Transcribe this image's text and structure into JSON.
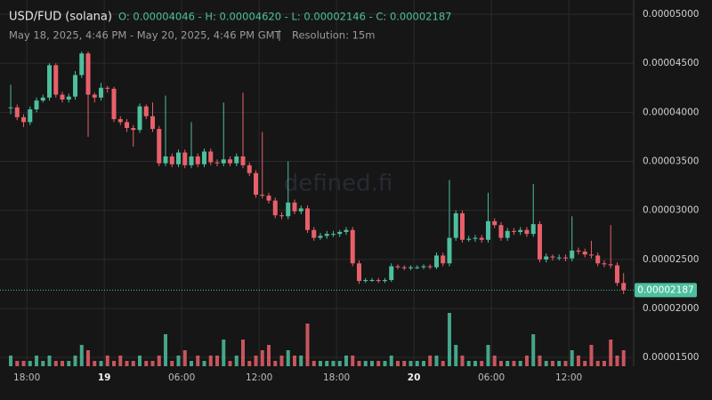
{
  "chart_data": {
    "type": "candlestick",
    "title": "USD/FUD (solana)",
    "ohlc": "O: 0.00004046 - H: 0.00004620 - L: 0.00002146 - C: 0.00002187",
    "date_range": "May 18, 2025, 4:46 PM - May 20, 2025, 4:46 PM GMT",
    "resolution": "Resolution: 15m",
    "watermark": "defined.fi",
    "last_price_label": "0.00002187",
    "up_color": "#4dbf9e",
    "down_color": "#e8606a",
    "grid": true,
    "xlim": [
      15.92,
      65.03
    ],
    "xticks": [
      {
        "value": 18,
        "label": "18:00"
      },
      {
        "value": 24,
        "label": "19"
      },
      {
        "value": 30,
        "label": "06:00"
      },
      {
        "value": 36,
        "label": "12:00"
      },
      {
        "value": 42,
        "label": "18:00"
      },
      {
        "value": 48,
        "label": "20"
      },
      {
        "value": 54,
        "label": "06:00"
      },
      {
        "value": 60,
        "label": "12:00"
      }
    ],
    "ylim": [
      1.411e-05,
      5.145e-05
    ],
    "yticks": [
      {
        "value": 1.5e-05,
        "label": "0.00001500"
      },
      {
        "value": 2e-05,
        "label": "0.00002000"
      },
      {
        "value": 2.5e-05,
        "label": "0.00002500"
      },
      {
        "value": 3e-05,
        "label": "0.00003000"
      },
      {
        "value": 3.5e-05,
        "label": "0.00003500"
      },
      {
        "value": 4e-05,
        "label": "0.00004000"
      },
      {
        "value": 4.5e-05,
        "label": "0.00004500"
      },
      {
        "value": 5e-05,
        "label": "0.00005000"
      }
    ],
    "x": [
      16.75,
      17.25,
      17.75,
      18.25,
      18.75,
      19.25,
      19.75,
      20.25,
      20.75,
      21.25,
      21.75,
      22.25,
      22.75,
      23.25,
      23.75,
      24.25,
      24.75,
      25.25,
      25.75,
      26.25,
      26.75,
      27.25,
      27.75,
      28.25,
      28.75,
      29.25,
      29.75,
      30.25,
      30.75,
      31.25,
      31.75,
      32.25,
      32.75,
      33.25,
      33.75,
      34.25,
      34.75,
      35.25,
      35.75,
      36.25,
      36.75,
      37.25,
      37.75,
      38.25,
      38.75,
      39.25,
      39.75,
      40.25,
      40.75,
      41.25,
      41.75,
      42.25,
      42.75,
      43.25,
      43.75,
      44.25,
      44.75,
      45.25,
      45.75,
      46.25,
      46.75,
      47.25,
      47.75,
      48.25,
      48.75,
      49.25,
      49.75,
      50.25,
      50.75,
      51.25,
      51.75,
      52.25,
      52.75,
      53.25,
      53.75,
      54.25,
      54.75,
      55.25,
      55.75,
      56.25,
      56.75,
      57.25,
      57.75,
      58.25,
      58.75,
      59.25,
      59.75,
      60.25,
      60.75,
      61.25,
      61.75,
      62.25,
      62.75,
      63.25,
      63.75,
      64.25
    ],
    "open": [
      4.046e-05,
      4.05e-05,
      3.95e-05,
      3.9e-05,
      4.03e-05,
      4.12e-05,
      4.15e-05,
      4.48e-05,
      4.18e-05,
      4.13e-05,
      4.16e-05,
      4.38e-05,
      4.6e-05,
      4.18e-05,
      4.15e-05,
      4.25e-05,
      4.24e-05,
      3.93e-05,
      3.9e-05,
      3.84e-05,
      3.82e-05,
      4.06e-05,
      3.96e-05,
      3.83e-05,
      3.48e-05,
      3.55e-05,
      3.47e-05,
      3.59e-05,
      3.46e-05,
      3.55e-05,
      3.47e-05,
      3.6e-05,
      3.49e-05,
      3.48e-05,
      3.52e-05,
      3.48e-05,
      3.55e-05,
      3.46e-05,
      3.38e-05,
      3.16e-05,
      3.15e-05,
      3.1e-05,
      2.95e-05,
      2.94e-05,
      3.08e-05,
      2.99e-05,
      3.02e-05,
      2.8e-05,
      2.72e-05,
      2.74e-05,
      2.76e-05,
      2.76e-05,
      2.78e-05,
      2.8e-05,
      2.46e-05,
      2.28e-05,
      2.29e-05,
      2.29e-05,
      2.28e-05,
      2.29e-05,
      2.43e-05,
      2.42e-05,
      2.41e-05,
      2.42e-05,
      2.42e-05,
      2.43e-05,
      2.42e-05,
      2.54e-05,
      2.46e-05,
      2.72e-05,
      2.97e-05,
      2.7e-05,
      2.71e-05,
      2.72e-05,
      2.7e-05,
      2.89e-05,
      2.85e-05,
      2.72e-05,
      2.79e-05,
      2.78e-05,
      2.8e-05,
      2.76e-05,
      2.86e-05,
      2.5e-05,
      2.53e-05,
      2.52e-05,
      2.52e-05,
      2.51e-05,
      2.59e-05,
      2.58e-05,
      2.55e-05,
      2.54e-05,
      2.46e-05,
      2.45e-05,
      2.44e-05,
      2.26e-05
    ],
    "high": [
      4.28e-05,
      4.08e-05,
      3.98e-05,
      4.06e-05,
      4.15e-05,
      4.18e-05,
      4.5e-05,
      4.5e-05,
      4.21e-05,
      4.19e-05,
      4.42e-05,
      4.62e-05,
      4.62e-05,
      4.2e-05,
      4.3e-05,
      4.27e-05,
      4.26e-05,
      3.96e-05,
      3.93e-05,
      3.87e-05,
      4.09e-05,
      4.08e-05,
      4.1e-05,
      3.86e-05,
      4.17e-05,
      3.58e-05,
      3.62e-05,
      3.62e-05,
      3.9e-05,
      3.58e-05,
      3.63e-05,
      3.63e-05,
      3.52e-05,
      4.1e-05,
      3.55e-05,
      3.58e-05,
      4.2e-05,
      3.49e-05,
      3.41e-05,
      3.8e-05,
      3.18e-05,
      3.13e-05,
      2.98e-05,
      3.5e-05,
      3.11e-05,
      3.05e-05,
      3.05e-05,
      2.83e-05,
      2.77e-05,
      2.79e-05,
      2.79e-05,
      2.8e-05,
      2.83e-05,
      2.83e-05,
      2.49e-05,
      2.31e-05,
      2.31e-05,
      2.31e-05,
      2.31e-05,
      2.46e-05,
      2.45e-05,
      2.44e-05,
      2.44e-05,
      2.44e-05,
      2.45e-05,
      2.45e-05,
      2.57e-05,
      2.57e-05,
      3.31e-05,
      3e-05,
      3e-05,
      2.74e-05,
      2.75e-05,
      2.75e-05,
      3.18e-05,
      2.92e-05,
      2.88e-05,
      2.82e-05,
      2.82e-05,
      2.83e-05,
      2.83e-05,
      3.27e-05,
      2.89e-05,
      2.56e-05,
      2.55e-05,
      2.55e-05,
      2.55e-05,
      2.94e-05,
      2.62e-05,
      2.61e-05,
      2.69e-05,
      2.57e-05,
      2.49e-05,
      2.85e-05,
      2.47e-05,
      2.36e-05
    ],
    "low": [
      3.98e-05,
      3.92e-05,
      3.85e-05,
      3.87e-05,
      4e-05,
      4.1e-05,
      4.12e-05,
      4.15e-05,
      4.1e-05,
      4.1e-05,
      4.13e-05,
      4.35e-05,
      3.75e-05,
      4.1e-05,
      4.12e-05,
      4.2e-05,
      3.9e-05,
      3.87e-05,
      3.8e-05,
      3.65e-05,
      3.79e-05,
      3.93e-05,
      3.8e-05,
      3.45e-05,
      3.45e-05,
      3.44e-05,
      3.44e-05,
      3.43e-05,
      3.43e-05,
      3.44e-05,
      3.44e-05,
      3.46e-05,
      3.45e-05,
      3.45e-05,
      3.45e-05,
      3.45e-05,
      3.43e-05,
      3.35e-05,
      3.13e-05,
      3.12e-05,
      3.07e-05,
      2.92e-05,
      2.91e-05,
      2.91e-05,
      2.96e-05,
      2.96e-05,
      2.77e-05,
      2.69e-05,
      2.7e-05,
      2.71e-05,
      2.73e-05,
      2.73e-05,
      2.75e-05,
      2.43e-05,
      2.25e-05,
      2.26e-05,
      2.27e-05,
      2.26e-05,
      2.26e-05,
      2.27e-05,
      2.4e-05,
      2.39e-05,
      2.39e-05,
      2.4e-05,
      2.4e-05,
      2.4e-05,
      2.4e-05,
      2.43e-05,
      2.43e-05,
      2.69e-05,
      2.67e-05,
      2.68e-05,
      2.68e-05,
      2.67e-05,
      2.67e-05,
      2.82e-05,
      2.69e-05,
      2.69e-05,
      2.75e-05,
      2.75e-05,
      2.73e-05,
      2.73e-05,
      2.47e-05,
      2.47e-05,
      2.49e-05,
      2.49e-05,
      2.48e-05,
      2.48e-05,
      2.55e-05,
      2.52e-05,
      2.51e-05,
      2.43e-05,
      2.42e-05,
      2.41e-05,
      2.23e-05,
      2.146e-05
    ],
    "close": [
      4.05e-05,
      3.95e-05,
      3.9e-05,
      4.03e-05,
      4.12e-05,
      4.15e-05,
      4.48e-05,
      4.18e-05,
      4.13e-05,
      4.16e-05,
      4.38e-05,
      4.6e-05,
      4.18e-05,
      4.15e-05,
      4.25e-05,
      4.24e-05,
      3.93e-05,
      3.9e-05,
      3.84e-05,
      3.82e-05,
      4.06e-05,
      3.96e-05,
      3.83e-05,
      3.48e-05,
      3.55e-05,
      3.47e-05,
      3.59e-05,
      3.46e-05,
      3.55e-05,
      3.47e-05,
      3.6e-05,
      3.49e-05,
      3.48e-05,
      3.52e-05,
      3.48e-05,
      3.55e-05,
      3.46e-05,
      3.38e-05,
      3.16e-05,
      3.15e-05,
      3.1e-05,
      2.95e-05,
      2.94e-05,
      3.08e-05,
      2.99e-05,
      3.02e-05,
      2.8e-05,
      2.72e-05,
      2.74e-05,
      2.76e-05,
      2.76e-05,
      2.78e-05,
      2.8e-05,
      2.46e-05,
      2.28e-05,
      2.29e-05,
      2.29e-05,
      2.28e-05,
      2.29e-05,
      2.43e-05,
      2.42e-05,
      2.41e-05,
      2.42e-05,
      2.42e-05,
      2.43e-05,
      2.42e-05,
      2.54e-05,
      2.46e-05,
      2.72e-05,
      2.97e-05,
      2.7e-05,
      2.71e-05,
      2.72e-05,
      2.7e-05,
      2.89e-05,
      2.85e-05,
      2.72e-05,
      2.79e-05,
      2.78e-05,
      2.8e-05,
      2.76e-05,
      2.86e-05,
      2.5e-05,
      2.53e-05,
      2.52e-05,
      2.52e-05,
      2.51e-05,
      2.59e-05,
      2.58e-05,
      2.55e-05,
      2.54e-05,
      2.46e-05,
      2.45e-05,
      2.44e-05,
      2.26e-05,
      2.187e-05
    ],
    "volume": [
      2,
      1,
      1,
      1,
      2,
      1,
      2,
      1,
      1,
      1,
      2,
      4,
      3,
      1,
      1,
      2,
      1,
      2,
      1,
      1,
      2,
      1,
      1,
      2,
      6,
      1,
      2,
      3,
      1,
      2,
      1,
      2,
      2,
      5,
      1,
      2,
      5,
      1,
      2,
      3,
      4,
      1,
      2,
      3,
      2,
      2,
      8,
      1,
      1,
      1,
      1,
      1,
      2,
      2,
      1,
      1,
      1,
      1,
      1,
      2,
      1,
      1,
      1,
      1,
      1,
      2,
      2,
      1,
      10,
      4,
      2,
      1,
      1,
      1,
      4,
      2,
      1,
      1,
      1,
      1,
      2,
      6,
      2,
      1,
      1,
      1,
      1,
      3,
      2,
      1,
      4,
      1,
      1,
      5,
      2,
      3
    ]
  }
}
